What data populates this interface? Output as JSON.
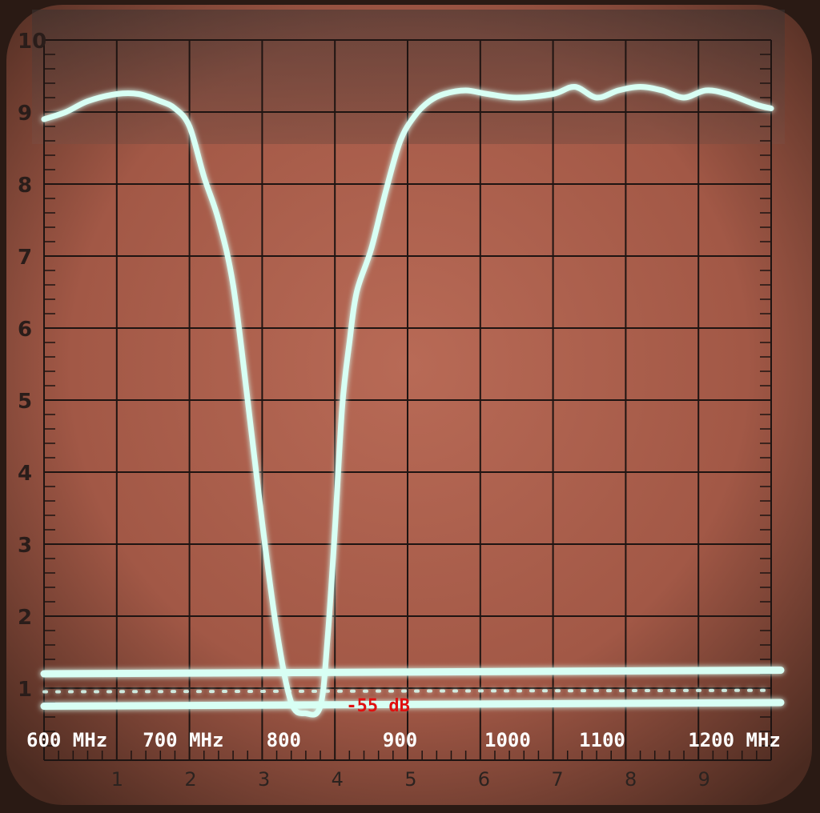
{
  "chart_data": {
    "type": "line",
    "title": "",
    "xlabel": "",
    "ylabel": "",
    "xlim": [
      0,
      10
    ],
    "ylim": [
      0,
      10
    ],
    "grid": true,
    "y_ticks": [
      "1",
      "2",
      "3",
      "4",
      "5",
      "6",
      "7",
      "8",
      "9",
      "10"
    ],
    "x_ticks": [
      "1",
      "2",
      "3",
      "4",
      "5",
      "6",
      "7",
      "8",
      "9"
    ],
    "freq_labels": [
      {
        "text": "600 MHz",
        "x": 0.0
      },
      {
        "text": "700 MHz",
        "x": 1.6
      },
      {
        "text": "800",
        "x": 3.3
      },
      {
        "text": "900",
        "x": 4.9
      },
      {
        "text": "1000",
        "x": 6.3
      },
      {
        "text": "1100",
        "x": 7.6
      },
      {
        "text": "1200 MHz",
        "x": 9.1
      }
    ],
    "annotation": {
      "text": "-55 dB",
      "x": 4.2,
      "y": 0.7
    },
    "series": [
      {
        "x": [
          0.0,
          0.3,
          0.6,
          1.0,
          1.3,
          1.6,
          1.8,
          2.0,
          2.2,
          2.4,
          2.6,
          2.8,
          3.0,
          3.2,
          3.4,
          3.6,
          3.8,
          3.9,
          4.0,
          4.1,
          4.2,
          4.3,
          4.5,
          4.7,
          4.9,
          5.1,
          5.3,
          5.5,
          5.8,
          6.1,
          6.5,
          7.0,
          7.3,
          7.6,
          7.9,
          8.2,
          8.5,
          8.8,
          9.1,
          9.4,
          9.8,
          10.0
        ],
        "y": [
          8.9,
          9.0,
          9.15,
          9.25,
          9.25,
          9.15,
          9.05,
          8.8,
          8.1,
          7.5,
          6.6,
          5.0,
          3.3,
          1.8,
          0.8,
          0.65,
          0.75,
          1.7,
          3.2,
          4.9,
          5.8,
          6.5,
          7.1,
          7.9,
          8.6,
          8.95,
          9.15,
          9.25,
          9.3,
          9.25,
          9.2,
          9.25,
          9.35,
          9.2,
          9.3,
          9.35,
          9.3,
          9.2,
          9.3,
          9.25,
          9.1,
          9.05
        ]
      },
      {
        "x": [
          0.0,
          10.0
        ],
        "y": [
          1.2,
          1.25
        ]
      },
      {
        "x": [
          0.0,
          10.0
        ],
        "y": [
          0.75,
          0.8
        ]
      },
      {
        "x": [
          0.0,
          10.0
        ],
        "y": [
          0.95,
          0.97
        ]
      }
    ]
  },
  "colors": {
    "screen": "#a85a48",
    "trace": "#d8fff4",
    "grid": "#1e1412",
    "annotation": "#e01010"
  }
}
